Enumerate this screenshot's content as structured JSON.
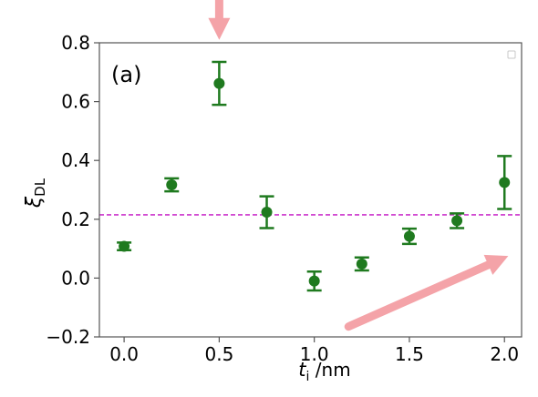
{
  "chart_data": {
    "type": "scatter",
    "panel_label": "(a)",
    "xlabel_main": "t",
    "xlabel_sub": "i",
    "xlabel_unit": " /nm",
    "ylabel_main": "ξ",
    "ylabel_sub": "DL",
    "xlim": [
      -0.13,
      2.09
    ],
    "ylim": [
      -0.2,
      0.8
    ],
    "xticks": [
      0.0,
      0.5,
      1.0,
      1.5,
      2.0
    ],
    "xtick_labels": [
      "0.0",
      "0.5",
      "1.0",
      "1.5",
      "2.0"
    ],
    "yticks": [
      -0.2,
      0.0,
      0.2,
      0.4,
      0.6,
      0.8
    ],
    "ytick_labels": [
      "−0.2",
      "0.0",
      "0.2",
      "0.4",
      "0.6",
      "0.8"
    ],
    "grid": false,
    "reference_line": {
      "y": 0.215,
      "style": "dashed",
      "color": "#cc33cc"
    },
    "series": [
      {
        "color": "#1f7a1f",
        "points": [
          {
            "x": 0.0,
            "y": 0.108,
            "err": 0.013
          },
          {
            "x": 0.25,
            "y": 0.317,
            "err": 0.022
          },
          {
            "x": 0.5,
            "y": 0.662,
            "err": 0.073
          },
          {
            "x": 0.75,
            "y": 0.224,
            "err": 0.054
          },
          {
            "x": 1.0,
            "y": -0.01,
            "err": 0.032
          },
          {
            "x": 1.25,
            "y": 0.048,
            "err": 0.022
          },
          {
            "x": 1.5,
            "y": 0.142,
            "err": 0.026
          },
          {
            "x": 1.75,
            "y": 0.195,
            "err": 0.025
          },
          {
            "x": 2.0,
            "y": 0.325,
            "err": 0.09
          }
        ]
      }
    ],
    "annotations": {
      "arrow_color": "#f4a3a8",
      "down_arrow": {
        "x": 0.5,
        "y_from": 0.99,
        "y_to": 0.81
      },
      "trend_arrow": {
        "x_from": 1.18,
        "y_from": -0.165,
        "x_to": 2.02,
        "y_to": 0.075
      }
    }
  }
}
